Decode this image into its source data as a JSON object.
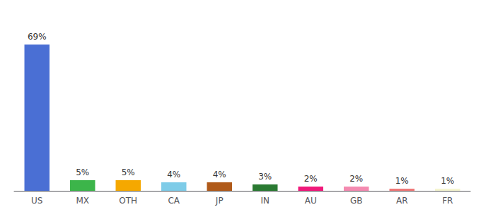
{
  "chart_data": {
    "type": "bar",
    "categories": [
      "US",
      "MX",
      "OTH",
      "CA",
      "JP",
      "IN",
      "AU",
      "GB",
      "AR",
      "FR"
    ],
    "values": [
      69,
      5,
      5,
      4,
      4,
      3,
      2,
      2,
      1,
      1
    ],
    "value_labels": [
      "69%",
      "5%",
      "5%",
      "4%",
      "4%",
      "3%",
      "2%",
      "2%",
      "1%",
      "1%"
    ],
    "colors": [
      "#4a6fd4",
      "#3cb54a",
      "#f5a800",
      "#7ecce8",
      "#b05a1a",
      "#2a7a32",
      "#f0197a",
      "#f48ab0",
      "#f07878",
      "#f5f5d0"
    ],
    "ylim": [
      0,
      80
    ],
    "grid": false,
    "data_labels": true,
    "tick_labels": "x"
  }
}
